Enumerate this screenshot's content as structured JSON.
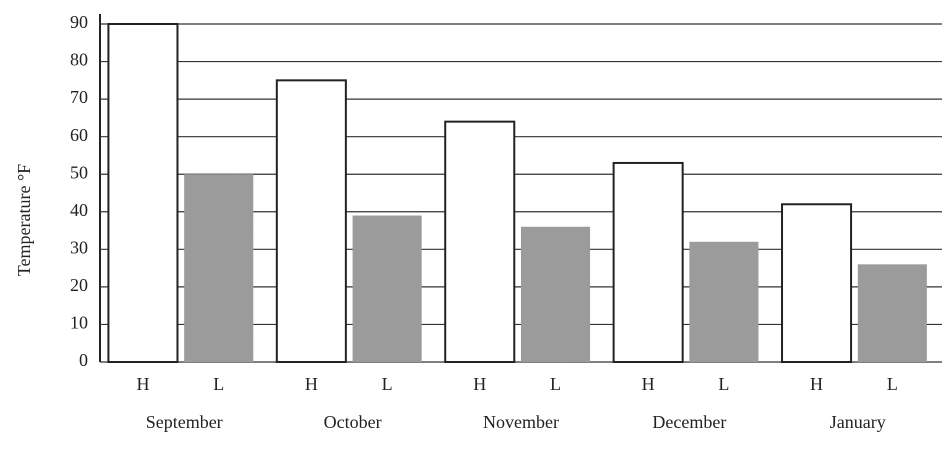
{
  "chart_data": {
    "type": "bar",
    "y_label": "Temperature °F",
    "categories": [
      "September",
      "October",
      "November",
      "December",
      "January"
    ],
    "series": [
      {
        "name": "H",
        "color": "#ffffff",
        "values": [
          90,
          75,
          64,
          53,
          42
        ]
      },
      {
        "name": "L",
        "color": "#9a9a9a",
        "values": [
          50,
          39,
          36,
          32,
          26
        ]
      }
    ],
    "ylim": [
      0,
      90
    ],
    "yticks": [
      0,
      10,
      20,
      30,
      40,
      50,
      60,
      70,
      80,
      90
    ],
    "grid": true
  }
}
